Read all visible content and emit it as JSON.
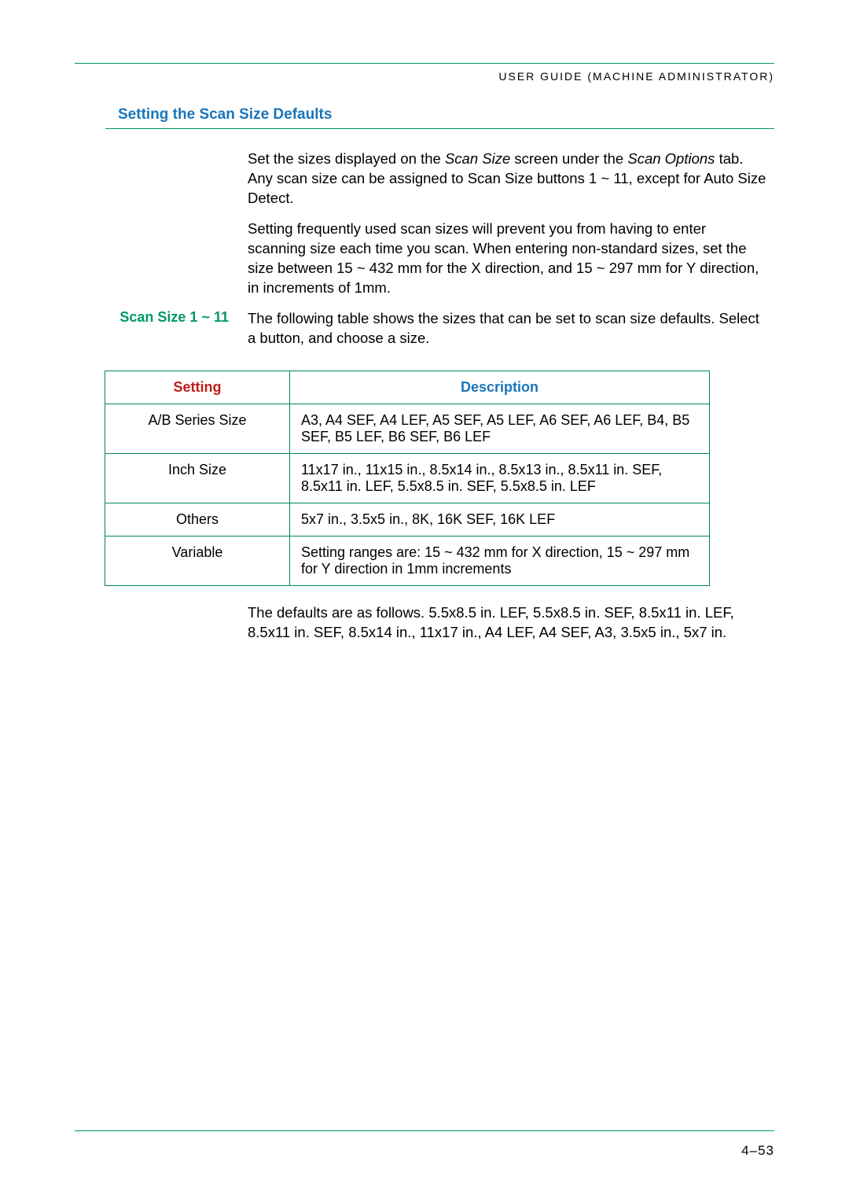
{
  "header": {
    "running_head": "USER GUIDE (MACHINE ADMINISTRATOR)"
  },
  "section": {
    "title": "Setting the Scan Size Defaults"
  },
  "paragraphs": {
    "p1_a": "Set the sizes displayed on the ",
    "p1_i1": "Scan Size",
    "p1_b": " screen under the ",
    "p1_i2": "Scan Options",
    "p1_c": " tab.  Any scan size can be assigned to Scan Size buttons 1 ~ 11, except for Auto Size Detect.",
    "p2": "Setting frequently used scan sizes will prevent you from having to enter scanning size each time you scan.  When entering non-standard sizes, set the size between 15 ~ 432 mm for the X direction, and 15 ~ 297 mm for Y direction, in increments of 1mm.",
    "scan_size_label": "Scan Size 1 ~ 11",
    "p3": "The following table shows the sizes that can be set to scan size defaults. Select a button, and choose a size.",
    "p4": "The defaults are as follows.  5.5x8.5 in. LEF, 5.5x8.5 in. SEF, 8.5x11 in. LEF, 8.5x11 in. SEF, 8.5x14 in., 11x17 in., A4 LEF, A4 SEF, A3, 3.5x5 in., 5x7 in."
  },
  "table": {
    "headers": {
      "setting": "Setting",
      "description": "Description"
    },
    "rows": [
      {
        "setting": "A/B Series Size",
        "description": "A3, A4 SEF, A4 LEF, A5 SEF, A5 LEF, A6 SEF, A6 LEF, B4, B5 SEF, B5 LEF, B6 SEF, B6 LEF"
      },
      {
        "setting": "Inch Size",
        "description": "11x17 in., 11x15 in., 8.5x14 in., 8.5x13 in., 8.5x11 in. SEF, 8.5x11 in. LEF, 5.5x8.5 in. SEF, 5.5x8.5 in. LEF"
      },
      {
        "setting": "Others",
        "description": "5x7 in., 3.5x5 in., 8K, 16K SEF, 16K LEF"
      },
      {
        "setting": "Variable",
        "description": "Setting ranges are: 15 ~ 432 mm for X direction, 15 ~ 297 mm for Y direction in 1mm increments"
      }
    ],
    "colors": {
      "border": "#008856",
      "setting_header": "#c11b1b",
      "description_header": "#1a75bb"
    }
  },
  "footer": {
    "page_number": "4–53"
  }
}
